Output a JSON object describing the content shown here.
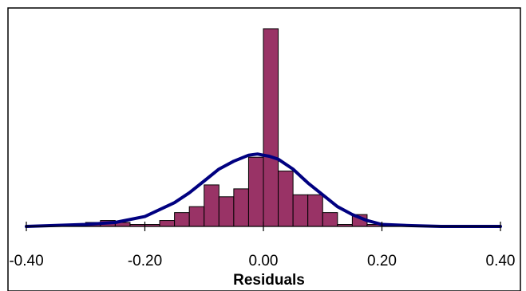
{
  "chart_data": {
    "type": "bar",
    "title": "",
    "xlabel": "Residuals",
    "ylabel": "",
    "xlim": [
      -0.4,
      0.4
    ],
    "ylim": [
      0,
      1
    ],
    "grid": false,
    "legend": "none",
    "x_ticks": [
      "-0.40",
      "-0.20",
      "0.00",
      "0.20",
      "0.40"
    ],
    "x_tick_values": [
      -0.4,
      -0.2,
      0.0,
      0.2,
      0.4
    ],
    "bin_width": 0.025,
    "bins": [
      {
        "x0": -0.3,
        "x1": -0.275,
        "value": 0.02
      },
      {
        "x0": -0.275,
        "x1": -0.25,
        "value": 0.03
      },
      {
        "x0": -0.25,
        "x1": -0.225,
        "value": 0.02
      },
      {
        "x0": -0.225,
        "x1": -0.2,
        "value": 0.01
      },
      {
        "x0": -0.2,
        "x1": -0.175,
        "value": 0.01
      },
      {
        "x0": -0.175,
        "x1": -0.15,
        "value": 0.03
      },
      {
        "x0": -0.15,
        "x1": -0.125,
        "value": 0.07
      },
      {
        "x0": -0.125,
        "x1": -0.1,
        "value": 0.1
      },
      {
        "x0": -0.1,
        "x1": -0.075,
        "value": 0.21
      },
      {
        "x0": -0.075,
        "x1": -0.05,
        "value": 0.15
      },
      {
        "x0": -0.05,
        "x1": -0.025,
        "value": 0.19
      },
      {
        "x0": -0.025,
        "x1": 0.0,
        "value": 0.35
      },
      {
        "x0": 0.0,
        "x1": 0.025,
        "value": 1.0
      },
      {
        "x0": 0.025,
        "x1": 0.05,
        "value": 0.28
      },
      {
        "x0": 0.05,
        "x1": 0.075,
        "value": 0.16
      },
      {
        "x0": 0.075,
        "x1": 0.1,
        "value": 0.16
      },
      {
        "x0": 0.1,
        "x1": 0.125,
        "value": 0.07
      },
      {
        "x0": 0.125,
        "x1": 0.15,
        "value": 0.01
      },
      {
        "x0": 0.15,
        "x1": 0.175,
        "value": 0.06
      },
      {
        "x0": 0.175,
        "x1": 0.2,
        "value": 0.01
      }
    ],
    "curve": {
      "type": "normal",
      "x": [
        -0.4,
        -0.3,
        -0.25,
        -0.2,
        -0.15,
        -0.125,
        -0.1,
        -0.075,
        -0.05,
        -0.025,
        -0.01,
        0.0,
        0.01,
        0.025,
        0.05,
        0.075,
        0.1,
        0.125,
        0.15,
        0.175,
        0.2,
        0.25,
        0.3,
        0.4
      ],
      "y": [
        0.0,
        0.01,
        0.02,
        0.05,
        0.12,
        0.17,
        0.23,
        0.29,
        0.33,
        0.36,
        0.366,
        0.36,
        0.355,
        0.34,
        0.29,
        0.22,
        0.16,
        0.1,
        0.06,
        0.03,
        0.01,
        0.004,
        0.0,
        0.0
      ]
    },
    "colors": {
      "bar_fill": "#993366",
      "bar_stroke": "#000000",
      "curve": "#000080",
      "axis": "#000000"
    }
  }
}
